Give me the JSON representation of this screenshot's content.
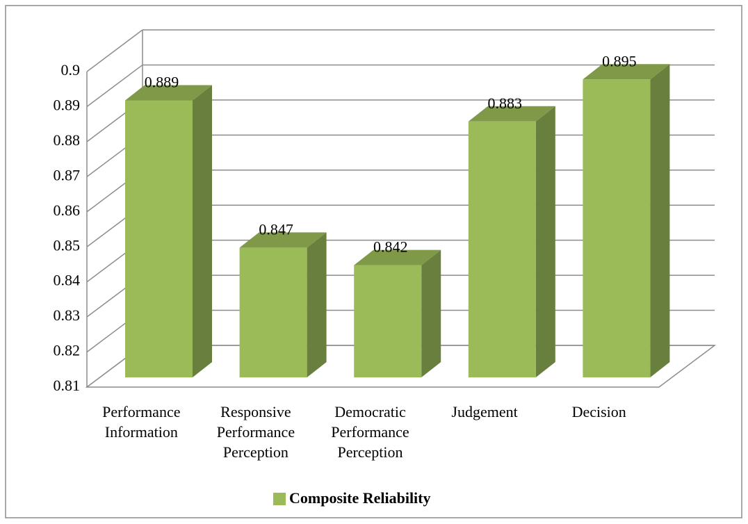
{
  "chart_data": {
    "type": "bar3d",
    "categories": [
      "Performance Information",
      "Responsive Performance Perception",
      "Democratic Performance Perception",
      "Judgement",
      "Decision"
    ],
    "series": [
      {
        "name": "Composite Reliability",
        "color": "#9bbb59",
        "values": [
          0.889,
          0.847,
          0.842,
          0.883,
          0.895
        ]
      }
    ],
    "ylim": [
      0.81,
      0.9
    ],
    "yticks": [
      0.81,
      0.82,
      0.83,
      0.84,
      0.85,
      0.86,
      0.87,
      0.88,
      0.89,
      0.9
    ],
    "grid": true,
    "legend": "bottom"
  }
}
